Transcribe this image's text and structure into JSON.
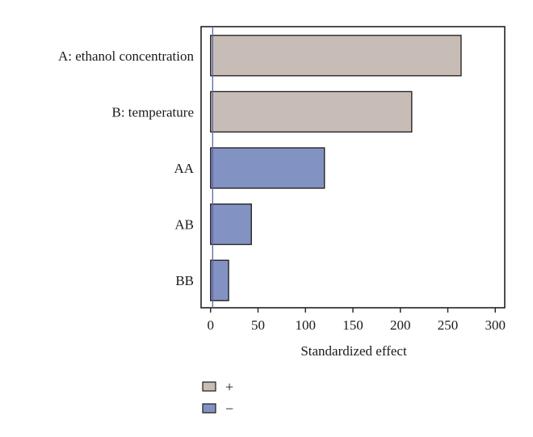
{
  "chart_data": {
    "type": "bar",
    "orientation": "horizontal",
    "categories": [
      "A: ethanol concentration",
      "B: temperature",
      "AA",
      "AB",
      "BB"
    ],
    "values": [
      264,
      212,
      120,
      43,
      19
    ],
    "signs": [
      "+",
      "+",
      "−",
      "−",
      "−"
    ],
    "xlabel": "Standardized effect",
    "xlim": [
      -10,
      310
    ],
    "xticks": [
      0,
      50,
      100,
      150,
      200,
      250,
      300
    ],
    "reference_line": 2.2,
    "legend": {
      "placement": "bottom-left",
      "entries": [
        {
          "label": "+",
          "color": "#c8bdb6"
        },
        {
          "label": "−",
          "color": "#8292c2"
        }
      ]
    },
    "colors": {
      "positive": "#c8bdb6",
      "negative": "#8292c2",
      "reference_line": "#5d64a8"
    }
  }
}
